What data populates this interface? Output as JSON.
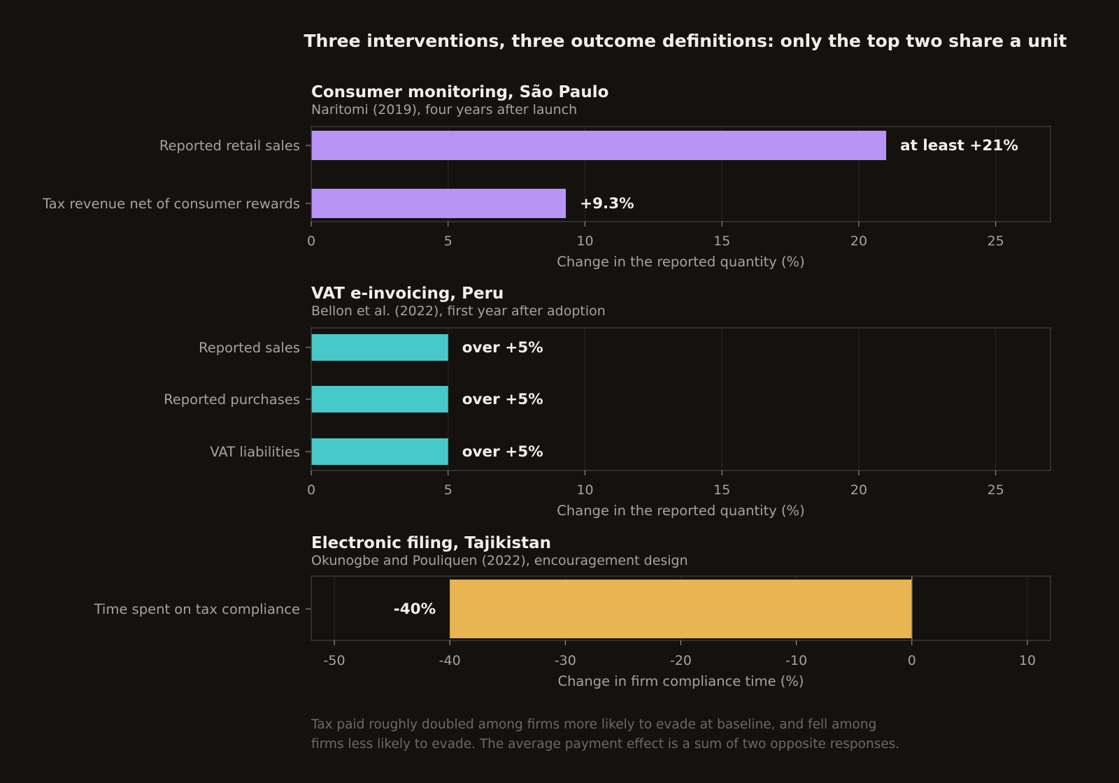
{
  "title": "Three interventions, three outcome definitions: only the top two share a unit",
  "colors": {
    "background": "#14110f",
    "panel_border": "#3d3935",
    "grid": "#2b2825",
    "title_text": "#f2efea",
    "subtitle_text": "#a8a39c",
    "tick_text": "#a8a39c",
    "footnote_text": "#6e6963",
    "value_label_text": "#f2efea"
  },
  "chart_data": [
    {
      "type": "bar",
      "orientation": "horizontal",
      "title": "Consumer monitoring, São Paulo",
      "subtitle": "Naritomi (2019), four years after launch",
      "categories": [
        "Reported retail sales",
        "Tax revenue net of consumer rewards"
      ],
      "values": [
        21,
        9.3
      ],
      "value_labels": [
        "at least +21%",
        "+9.3%"
      ],
      "color": "#b794f6",
      "xlabel": "Change in the reported quantity (%)",
      "xlim": [
        0,
        27
      ],
      "xticks": [
        0,
        5,
        10,
        15,
        20,
        25
      ],
      "xtick_labels": [
        "0",
        "5",
        "10",
        "15",
        "20",
        "25"
      ],
      "grid": true
    },
    {
      "type": "bar",
      "orientation": "horizontal",
      "title": "VAT e-invoicing, Peru",
      "subtitle": "Bellon et al. (2022), first year after adoption",
      "categories": [
        "Reported sales",
        "Reported purchases",
        "VAT liabilities"
      ],
      "values": [
        5,
        5,
        5
      ],
      "value_labels": [
        "over +5%",
        "over +5%",
        "over +5%"
      ],
      "color": "#48c9c9",
      "xlabel": "Change in the reported quantity (%)",
      "xlim": [
        0,
        27
      ],
      "xticks": [
        0,
        5,
        10,
        15,
        20,
        25
      ],
      "xtick_labels": [
        "0",
        "5",
        "10",
        "15",
        "20",
        "25"
      ],
      "grid": true
    },
    {
      "type": "bar",
      "orientation": "horizontal",
      "title": "Electronic filing, Tajikistan",
      "subtitle": "Okunogbe and Pouliquen (2022), encouragement design",
      "categories": [
        "Time spent on tax compliance"
      ],
      "values": [
        -40
      ],
      "value_labels": [
        "-40%"
      ],
      "color": "#e8b552",
      "xlabel": "Change in firm compliance time (%)",
      "xlim": [
        -52,
        12
      ],
      "xticks": [
        -50,
        -40,
        -30,
        -20,
        -10,
        0,
        10
      ],
      "xtick_labels": [
        "-50",
        "-40",
        "-30",
        "-20",
        "-10",
        "0",
        "10"
      ],
      "zero_line": true,
      "grid": true
    }
  ],
  "footnote": [
    "Tax paid roughly doubled among firms more likely to evade at baseline, and fell among",
    "firms less likely to evade. The average payment effect is a sum of two opposite responses."
  ]
}
